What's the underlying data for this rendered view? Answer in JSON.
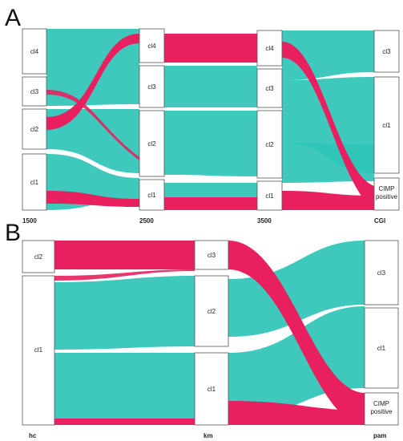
{
  "colors": {
    "teal": "#2ec4b6",
    "pink": "#e8205f",
    "node_fill": "#ffffff",
    "node_stroke": "#555555"
  },
  "panels": [
    {
      "letter": "A",
      "axes": [
        "1500",
        "2500",
        "3500",
        "CGI"
      ],
      "columns": [
        {
          "nodes": [
            {
              "id": "a1_cl4",
              "label": "cl4"
            },
            {
              "id": "a1_cl3",
              "label": "cl3"
            },
            {
              "id": "a1_cl2",
              "label": "cl2"
            },
            {
              "id": "a1_cl1",
              "label": "cl1"
            }
          ]
        },
        {
          "nodes": [
            {
              "id": "a2_cl4",
              "label": "cl4"
            },
            {
              "id": "a2_cl3",
              "label": "cl3"
            },
            {
              "id": "a2_cl2",
              "label": "cl2"
            },
            {
              "id": "a2_cl1",
              "label": "cl1"
            }
          ]
        },
        {
          "nodes": [
            {
              "id": "a3_cl4",
              "label": "cl4"
            },
            {
              "id": "a3_cl3",
              "label": "cl3"
            },
            {
              "id": "a3_cl2",
              "label": "cl2"
            },
            {
              "id": "a3_cl1",
              "label": "cl1"
            }
          ]
        },
        {
          "nodes": [
            {
              "id": "a4_cl3",
              "label": "cl3"
            },
            {
              "id": "a4_cl1",
              "label": "cl1"
            },
            {
              "id": "a4_cimp",
              "label": "CIMP positive"
            }
          ]
        }
      ]
    },
    {
      "letter": "B",
      "axes": [
        "hc",
        "km",
        "pam"
      ],
      "columns": [
        {
          "nodes": [
            {
              "id": "b1_cl2",
              "label": "cl2"
            },
            {
              "id": "b1_cl1",
              "label": "cl1"
            }
          ]
        },
        {
          "nodes": [
            {
              "id": "b2_cl3",
              "label": "cl3"
            },
            {
              "id": "b2_cl2",
              "label": "cl2"
            },
            {
              "id": "b2_cl1",
              "label": "cl1"
            }
          ]
        },
        {
          "nodes": [
            {
              "id": "b3_cl3",
              "label": "cl3"
            },
            {
              "id": "b3_cl1",
              "label": "cl1"
            },
            {
              "id": "b3_cimp",
              "label": "CIMP positive"
            }
          ]
        }
      ]
    }
  ]
}
